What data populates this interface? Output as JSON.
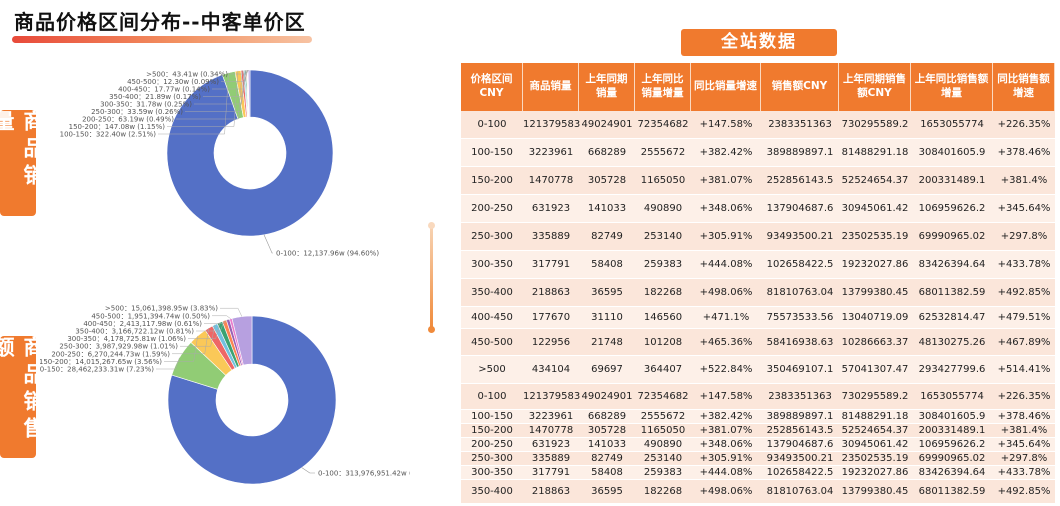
{
  "page": {
    "title": "商品价格区间分布--中客单价区",
    "side_tag_qty": "商品销量",
    "side_tag_sales": "商品销售额",
    "banner": "全站数据"
  },
  "chart_data": [
    {
      "type": "pie",
      "donut": true,
      "title": "",
      "slices": [
        {
          "label": "0-100",
          "value_text": "12,137.96w",
          "pct_text": "94.60%",
          "value": 12137.96,
          "color": "#5470c6"
        },
        {
          "label": "100-150",
          "value_text": "322.40w",
          "pct_text": "2.51%",
          "value": 322.4,
          "color": "#91cc75"
        },
        {
          "label": "150-200",
          "value_text": "147.08w",
          "pct_text": "1.15%",
          "value": 147.08,
          "color": "#fac858"
        },
        {
          "label": "200-250",
          "value_text": "63.19w",
          "pct_text": "0.49%",
          "value": 63.19,
          "color": "#ee6666"
        },
        {
          "label": "250-300",
          "value_text": "33.59w",
          "pct_text": "0.26%",
          "value": 33.59,
          "color": "#73c0de"
        },
        {
          "label": "300-350",
          "value_text": "31.78w",
          "pct_text": "0.25%",
          "value": 31.78,
          "color": "#3ba272"
        },
        {
          "label": "350-400",
          "value_text": "21.89w",
          "pct_text": "0.17%",
          "value": 21.89,
          "color": "#fc8452"
        },
        {
          "label": "400-450",
          "value_text": "17.77w",
          "pct_text": "0.14%",
          "value": 17.77,
          "color": "#9a60b4"
        },
        {
          "label": "450-500",
          "value_text": "12.30w",
          "pct_text": "0.09%",
          "value": 12.3,
          "color": "#ea7ccc"
        },
        {
          "label": ">500",
          "value_text": "43.41w",
          "pct_text": "0.34%",
          "value": 43.41,
          "color": "#b7a0e0"
        }
      ]
    },
    {
      "type": "pie",
      "donut": true,
      "title": "",
      "slices": [
        {
          "label": "0-100",
          "value_text": "313,976,951.42w",
          "pct_text": "79.80%",
          "value": 313976951.42,
          "color": "#5470c6"
        },
        {
          "label": "100-150",
          "value_text": "28,462,233.31w",
          "pct_text": "7.23%",
          "value": 28462233.31,
          "color": "#91cc75"
        },
        {
          "label": "150-200",
          "value_text": "14,015,267.65w",
          "pct_text": "3.56%",
          "value": 14015267.65,
          "color": "#fac858"
        },
        {
          "label": "200-250",
          "value_text": "6,270,244.73w",
          "pct_text": "1.59%",
          "value": 6270244.73,
          "color": "#ee6666"
        },
        {
          "label": "250-300",
          "value_text": "3,987,929.98w",
          "pct_text": "1.01%",
          "value": 3987929.98,
          "color": "#73c0de"
        },
        {
          "label": "300-350",
          "value_text": "4,178,725.81w",
          "pct_text": "1.06%",
          "value": 4178725.81,
          "color": "#3ba272"
        },
        {
          "label": "350-400",
          "value_text": "3,166,722.12w",
          "pct_text": "0.81%",
          "value": 3166722.12,
          "color": "#fc8452"
        },
        {
          "label": "400-450",
          "value_text": "2,413,117.98w",
          "pct_text": "0.61%",
          "value": 2413117.98,
          "color": "#9a60b4"
        },
        {
          "label": "450-500",
          "value_text": "1,951,394.74w",
          "pct_text": "0.50%",
          "value": 1951394.74,
          "color": "#ea7ccc"
        },
        {
          "label": ">500",
          "value_text": "15,061,398.95w",
          "pct_text": "3.83%",
          "value": 15061398.95,
          "color": "#b7a0e0"
        }
      ]
    }
  ],
  "table": {
    "headers": [
      "价格区间CNY",
      "商品销量",
      "上年同期销量",
      "上年同比销量增量",
      "同比销量增速",
      "销售额CNY",
      "上年同期销售额CNY",
      "上年同比销售额增量",
      "同比销售额增速"
    ],
    "rows": [
      [
        "0-100",
        "121379583",
        "49024901",
        "72354682",
        "+147.58%",
        "2383351363",
        "730295589.2",
        "1653055774",
        "+226.35%"
      ],
      [
        "100-150",
        "3223961",
        "668289",
        "2555672",
        "+382.42%",
        "389889897.1",
        "81488291.18",
        "308401605.9",
        "+378.46%"
      ],
      [
        "150-200",
        "1470778",
        "305728",
        "1165050",
        "+381.07%",
        "252856143.5",
        "52524654.37",
        "200331489.1",
        "+381.4%"
      ],
      [
        "200-250",
        "631923",
        "141033",
        "490890",
        "+348.06%",
        "137904687.6",
        "30945061.42",
        "106959626.2",
        "+345.64%"
      ],
      [
        "250-300",
        "335889",
        "82749",
        "253140",
        "+305.91%",
        "93493500.21",
        "23502535.19",
        "69990965.02",
        "+297.8%"
      ],
      [
        "300-350",
        "317791",
        "58408",
        "259383",
        "+444.08%",
        "102658422.5",
        "19232027.86",
        "83426394.64",
        "+433.78%"
      ],
      [
        "350-400",
        "218863",
        "36595",
        "182268",
        "+498.06%",
        "81810763.04",
        "13799380.45",
        "68011382.59",
        "+492.85%"
      ],
      [
        "400-450",
        "177670",
        "31110",
        "146560",
        "+471.1%",
        "75573533.56",
        "13040719.09",
        "62532814.47",
        "+479.51%"
      ],
      [
        "450-500",
        "122956",
        "21748",
        "101208",
        "+465.36%",
        "58416938.63",
        "10286663.37",
        "48130275.26",
        "+467.89%"
      ],
      [
        ">500",
        "434104",
        "69697",
        "364407",
        "+522.84%",
        "350469107.1",
        "57041307.47",
        "293427799.6",
        "+514.41%"
      ],
      [
        "0-100",
        "121379583",
        "49024901",
        "72354682",
        "+147.58%",
        "2383351363",
        "730295589.2",
        "1653055774",
        "+226.35%"
      ],
      [
        "100-150",
        "3223961",
        "668289",
        "2555672",
        "+382.42%",
        "389889897.1",
        "81488291.18",
        "308401605.9",
        "+378.46%"
      ],
      [
        "150-200",
        "1470778",
        "305728",
        "1165050",
        "+381.07%",
        "252856143.5",
        "52524654.37",
        "200331489.1",
        "+381.4%"
      ],
      [
        "200-250",
        "631923",
        "141033",
        "490890",
        "+348.06%",
        "137904687.6",
        "30945061.42",
        "106959626.2",
        "+345.64%"
      ],
      [
        "250-300",
        "335889",
        "82749",
        "253140",
        "+305.91%",
        "93493500.21",
        "23502535.19",
        "69990965.02",
        "+297.8%"
      ],
      [
        "300-350",
        "317791",
        "58408",
        "259383",
        "+444.08%",
        "102658422.5",
        "19232027.86",
        "83426394.64",
        "+433.78%"
      ],
      [
        "350-400",
        "218863",
        "36595",
        "182268",
        "+498.06%",
        "81810763.04",
        "13799380.45",
        "68011382.59",
        "+492.85%"
      ]
    ]
  }
}
